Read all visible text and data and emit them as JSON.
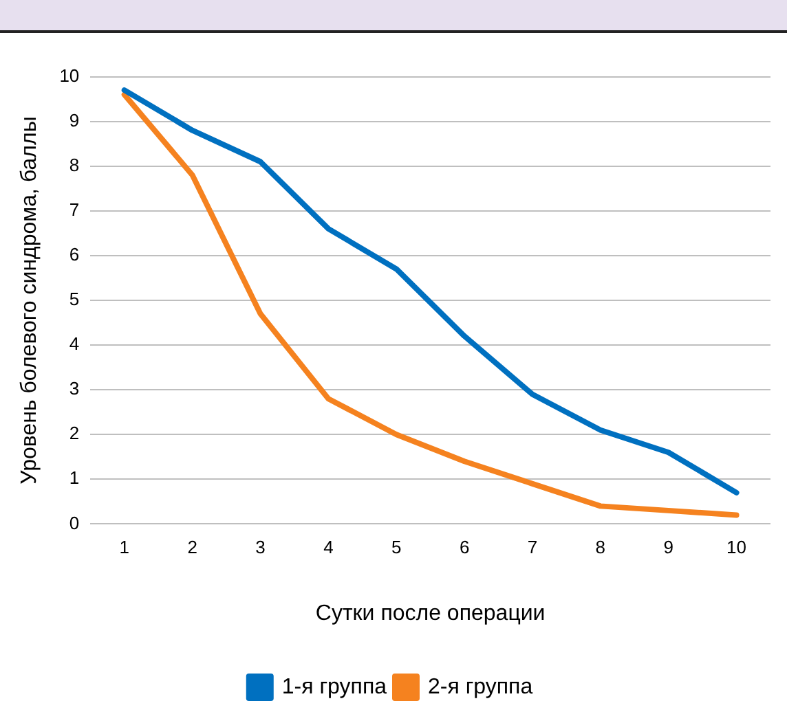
{
  "chart_data": {
    "type": "line",
    "xlabel": "Сутки после операции",
    "ylabel": "Уровень болевого синдрома, баллы",
    "categories": [
      "1",
      "2",
      "3",
      "4",
      "5",
      "6",
      "7",
      "8",
      "9",
      "10"
    ],
    "series": [
      {
        "name": "1-я группа",
        "color": "#0070c0",
        "values": [
          9.7,
          8.8,
          8.1,
          6.6,
          5.7,
          4.2,
          2.9,
          2.1,
          1.6,
          0.7
        ]
      },
      {
        "name": "2-я группа",
        "color": "#f5821f",
        "values": [
          9.6,
          7.8,
          4.7,
          2.8,
          2.0,
          1.4,
          0.9,
          0.4,
          0.3,
          0.2
        ]
      }
    ],
    "ylim": [
      0,
      10
    ],
    "yticks": [
      0,
      1,
      2,
      3,
      4,
      5,
      6,
      7,
      8,
      9,
      10
    ],
    "grid": "y",
    "legend": "bottom",
    "marker": "none",
    "line_style": "solid"
  }
}
